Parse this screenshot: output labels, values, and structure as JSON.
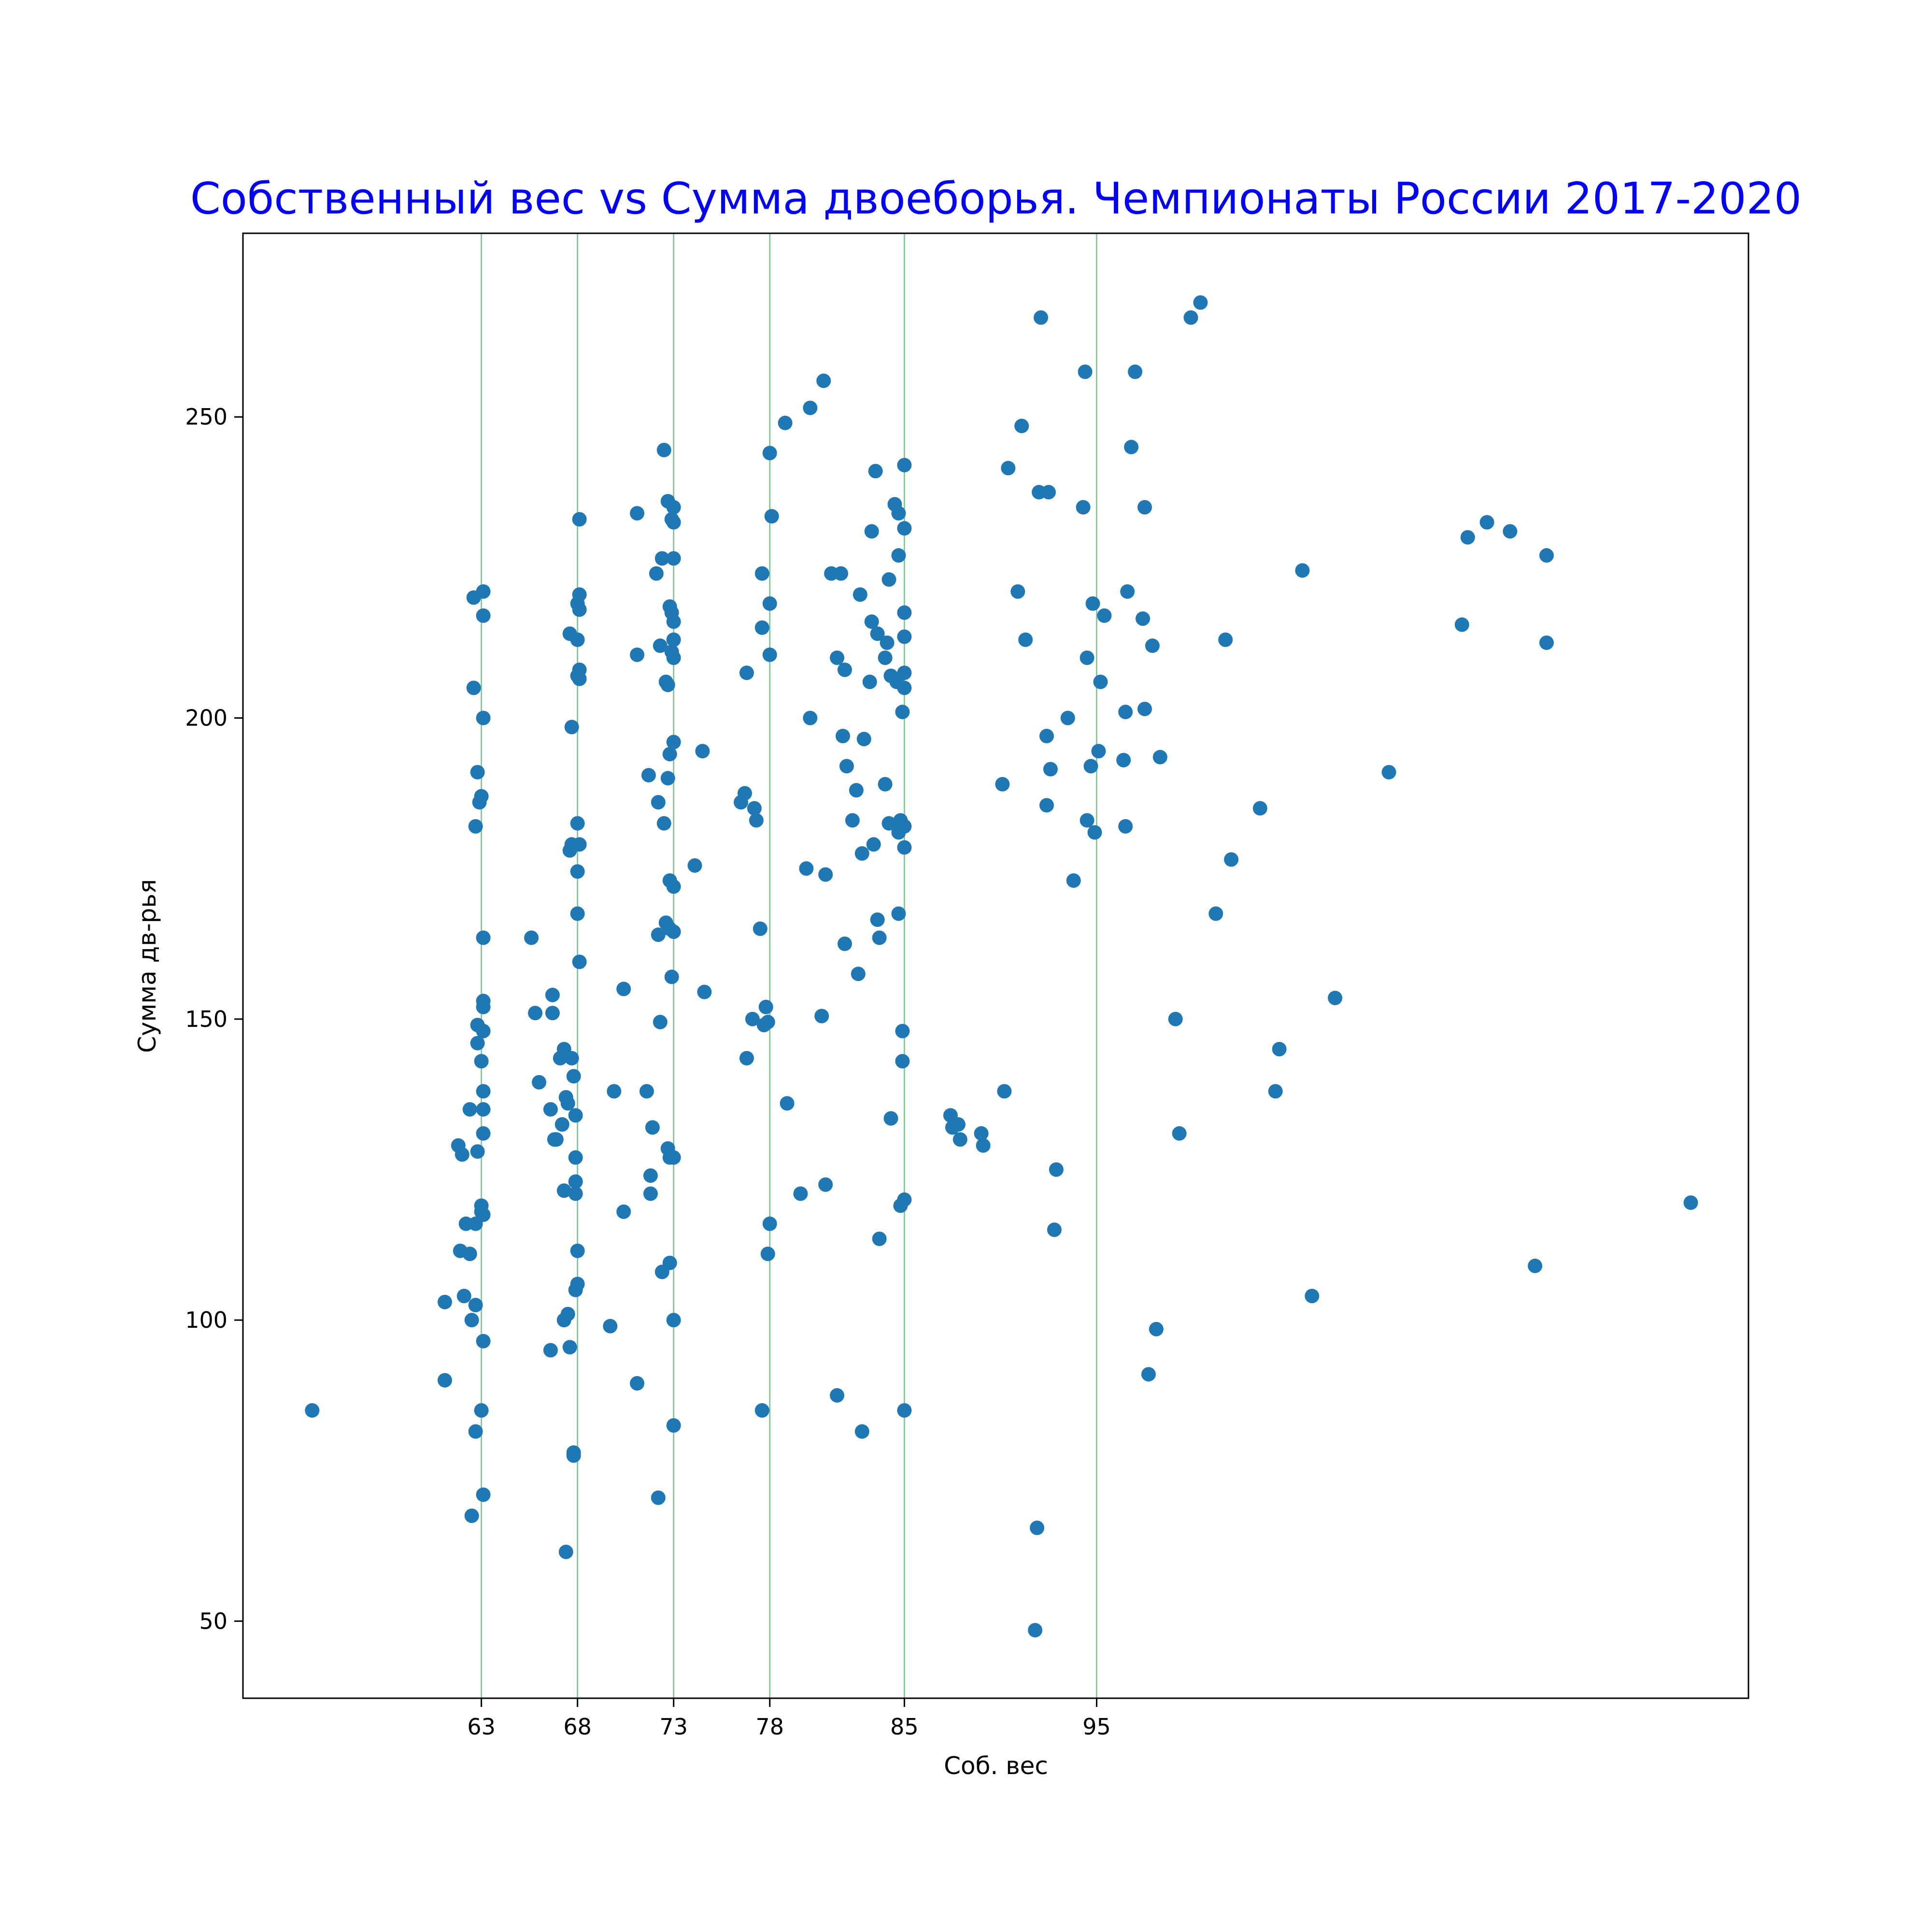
{
  "chart_data": {
    "type": "scatter",
    "title": "Собственный вес vs Сумма двоеборья. Чемпионаты России 2017-2020",
    "xlabel": "Соб. вес",
    "ylabel": "Сумма дв-рья",
    "xlim": [
      50.6,
      128.9
    ],
    "ylim": [
      37.2,
      280.5
    ],
    "xticks": [
      63,
      68,
      73,
      78,
      85,
      95
    ],
    "yticks": [
      50,
      100,
      150,
      200,
      250
    ],
    "vlines": [
      63,
      68,
      73,
      78,
      85,
      95
    ],
    "grid": false,
    "series": [
      {
        "points": [
          [
            54.2,
            85
          ],
          [
            61.1,
            103
          ],
          [
            61.1,
            90
          ],
          [
            61.8,
            129
          ],
          [
            61.9,
            111.5
          ],
          [
            62.0,
            127.5
          ],
          [
            62.1,
            104
          ],
          [
            62.2,
            116
          ],
          [
            62.4,
            111
          ],
          [
            62.4,
            135
          ],
          [
            62.5,
            100
          ],
          [
            62.5,
            67.5
          ],
          [
            62.6,
            220
          ],
          [
            62.6,
            205
          ],
          [
            62.7,
            182
          ],
          [
            62.7,
            116
          ],
          [
            62.7,
            102.5
          ],
          [
            62.7,
            81.5
          ],
          [
            62.8,
            191
          ],
          [
            62.8,
            149
          ],
          [
            62.8,
            146
          ],
          [
            62.8,
            128
          ],
          [
            62.9,
            186
          ],
          [
            63.0,
            187
          ],
          [
            63.0,
            143
          ],
          [
            63.0,
            119
          ],
          [
            63.0,
            118
          ],
          [
            63.0,
            85
          ],
          [
            63.1,
            221
          ],
          [
            63.1,
            217
          ],
          [
            63.1,
            200
          ],
          [
            63.1,
            163.5
          ],
          [
            63.1,
            153
          ],
          [
            63.1,
            152
          ],
          [
            63.1,
            148
          ],
          [
            63.1,
            138
          ],
          [
            63.1,
            135
          ],
          [
            63.1,
            131
          ],
          [
            63.1,
            117.5
          ],
          [
            63.1,
            96.5
          ],
          [
            63.1,
            71
          ],
          [
            65.6,
            163.5
          ],
          [
            65.8,
            151
          ],
          [
            66.0,
            139.5
          ],
          [
            66.6,
            135
          ],
          [
            66.6,
            95
          ],
          [
            66.7,
            154
          ],
          [
            66.7,
            151
          ],
          [
            66.8,
            130
          ],
          [
            66.9,
            130
          ],
          [
            67.1,
            143.5
          ],
          [
            67.2,
            132.5
          ],
          [
            67.3,
            145
          ],
          [
            67.3,
            121.5
          ],
          [
            67.3,
            100
          ],
          [
            67.4,
            137
          ],
          [
            67.4,
            61.5
          ],
          [
            67.5,
            136
          ],
          [
            67.5,
            101
          ],
          [
            67.6,
            214
          ],
          [
            67.6,
            178
          ],
          [
            67.6,
            95.5
          ],
          [
            67.7,
            198.5
          ],
          [
            67.7,
            179
          ],
          [
            67.7,
            143.5
          ],
          [
            67.8,
            140.5
          ],
          [
            67.8,
            78
          ],
          [
            67.8,
            77.5
          ],
          [
            67.9,
            134
          ],
          [
            67.9,
            127
          ],
          [
            67.9,
            123
          ],
          [
            67.9,
            121
          ],
          [
            67.9,
            105
          ],
          [
            68.0,
            219
          ],
          [
            68.0,
            213
          ],
          [
            68.0,
            207
          ],
          [
            68.0,
            182.5
          ],
          [
            68.0,
            174.5
          ],
          [
            68.0,
            167.5
          ],
          [
            68.0,
            111.5
          ],
          [
            68.0,
            106
          ],
          [
            68.1,
            233
          ],
          [
            68.1,
            220.5
          ],
          [
            68.1,
            218
          ],
          [
            68.1,
            208
          ],
          [
            68.1,
            206.5
          ],
          [
            68.1,
            179
          ],
          [
            68.1,
            159.5
          ],
          [
            69.7,
            99
          ],
          [
            69.9,
            138
          ],
          [
            70.4,
            155
          ],
          [
            70.4,
            118
          ],
          [
            71.1,
            234
          ],
          [
            71.1,
            210.5
          ],
          [
            71.1,
            89.5
          ],
          [
            71.6,
            138
          ],
          [
            71.7,
            190.5
          ],
          [
            71.8,
            124
          ],
          [
            71.8,
            121
          ],
          [
            71.9,
            132
          ],
          [
            72.1,
            224
          ],
          [
            72.2,
            186
          ],
          [
            72.2,
            164
          ],
          [
            72.2,
            70.5
          ],
          [
            72.3,
            212
          ],
          [
            72.3,
            149.5
          ],
          [
            72.4,
            226.5
          ],
          [
            72.4,
            108
          ],
          [
            72.5,
            244.5
          ],
          [
            72.5,
            182.5
          ],
          [
            72.6,
            206
          ],
          [
            72.6,
            166
          ],
          [
            72.7,
            236
          ],
          [
            72.7,
            205.5
          ],
          [
            72.7,
            190
          ],
          [
            72.7,
            128.5
          ],
          [
            72.8,
            218.5
          ],
          [
            72.8,
            194
          ],
          [
            72.8,
            173
          ],
          [
            72.8,
            165
          ],
          [
            72.8,
            109.5
          ],
          [
            72.8,
            127
          ],
          [
            72.9,
            233
          ],
          [
            72.9,
            217.5
          ],
          [
            72.9,
            211
          ],
          [
            72.9,
            157
          ],
          [
            73.0,
            235
          ],
          [
            73.0,
            232.5
          ],
          [
            73.0,
            216
          ],
          [
            73.0,
            213
          ],
          [
            73.0,
            210
          ],
          [
            73.0,
            196
          ],
          [
            73.0,
            172
          ],
          [
            73.0,
            164.5
          ],
          [
            73.0,
            100
          ],
          [
            73.0,
            82.5
          ],
          [
            73.0,
            127
          ],
          [
            73.0,
            226.5
          ],
          [
            74.1,
            175.5
          ],
          [
            74.5,
            194.5
          ],
          [
            74.6,
            154.5
          ],
          [
            76.5,
            186
          ],
          [
            76.7,
            187.5
          ],
          [
            76.8,
            207.5
          ],
          [
            76.8,
            143.5
          ],
          [
            77.1,
            150
          ],
          [
            77.2,
            185
          ],
          [
            77.3,
            183
          ],
          [
            77.5,
            165
          ],
          [
            77.6,
            224
          ],
          [
            77.6,
            215
          ],
          [
            77.6,
            85
          ],
          [
            77.7,
            149
          ],
          [
            77.8,
            152
          ],
          [
            77.9,
            149.5
          ],
          [
            77.9,
            111
          ],
          [
            78.0,
            219
          ],
          [
            78.0,
            244
          ],
          [
            78.0,
            210.5
          ],
          [
            78.0,
            116
          ],
          [
            78.1,
            233.5
          ],
          [
            78.8,
            249
          ],
          [
            78.9,
            136
          ],
          [
            79.6,
            121
          ],
          [
            79.9,
            175
          ],
          [
            80.1,
            251.5
          ],
          [
            80.1,
            200
          ],
          [
            80.7,
            150.5
          ],
          [
            80.8,
            256
          ],
          [
            80.9,
            174
          ],
          [
            80.9,
            122.5
          ],
          [
            81.2,
            224
          ],
          [
            81.5,
            210
          ],
          [
            81.5,
            87.5
          ],
          [
            81.7,
            224
          ],
          [
            81.8,
            197
          ],
          [
            81.9,
            162.5
          ],
          [
            81.9,
            208
          ],
          [
            82.0,
            192
          ],
          [
            82.3,
            183
          ],
          [
            82.5,
            188
          ],
          [
            82.6,
            157.5
          ],
          [
            82.7,
            220.5
          ],
          [
            82.8,
            177.5
          ],
          [
            82.8,
            81.5
          ],
          [
            82.9,
            196.5
          ],
          [
            83.2,
            206
          ],
          [
            83.3,
            216
          ],
          [
            83.3,
            231
          ],
          [
            83.4,
            179
          ],
          [
            83.5,
            241
          ],
          [
            83.6,
            214
          ],
          [
            83.6,
            166.5
          ],
          [
            83.7,
            163.5
          ],
          [
            83.7,
            113.5
          ],
          [
            84.0,
            210
          ],
          [
            84.0,
            189
          ],
          [
            84.1,
            212.5
          ],
          [
            84.2,
            223
          ],
          [
            84.2,
            182.5
          ],
          [
            84.3,
            207
          ],
          [
            84.3,
            133.5
          ],
          [
            84.5,
            235.5
          ],
          [
            84.6,
            206
          ],
          [
            84.7,
            234
          ],
          [
            84.7,
            227
          ],
          [
            84.7,
            167.5
          ],
          [
            84.7,
            181
          ],
          [
            84.8,
            183
          ],
          [
            84.8,
            119
          ],
          [
            84.9,
            201
          ],
          [
            84.9,
            148
          ],
          [
            84.9,
            143
          ],
          [
            85.0,
            242
          ],
          [
            85.0,
            231.5
          ],
          [
            85.0,
            217.5
          ],
          [
            85.0,
            213.5
          ],
          [
            85.0,
            207.5
          ],
          [
            85.0,
            205
          ],
          [
            85.0,
            178.5
          ],
          [
            85.0,
            182
          ],
          [
            85.0,
            120
          ],
          [
            85.0,
            85
          ],
          [
            87.4,
            134
          ],
          [
            87.5,
            132
          ],
          [
            87.8,
            132.5
          ],
          [
            87.9,
            130
          ],
          [
            89.0,
            131
          ],
          [
            89.1,
            129
          ],
          [
            90.1,
            189
          ],
          [
            90.2,
            138
          ],
          [
            90.4,
            241.5
          ],
          [
            90.9,
            221
          ],
          [
            91.1,
            248.5
          ],
          [
            91.3,
            213
          ],
          [
            91.9,
            65.5
          ],
          [
            91.8,
            48.5
          ],
          [
            92.0,
            237.5
          ],
          [
            92.1,
            266.5
          ],
          [
            92.4,
            197
          ],
          [
            92.4,
            185.5
          ],
          [
            92.5,
            237.5
          ],
          [
            92.6,
            191.5
          ],
          [
            92.8,
            115
          ],
          [
            92.9,
            125
          ],
          [
            93.5,
            200
          ],
          [
            93.8,
            173
          ],
          [
            94.3,
            235
          ],
          [
            94.4,
            257.5
          ],
          [
            94.5,
            210
          ],
          [
            94.5,
            183
          ],
          [
            94.7,
            192
          ],
          [
            94.8,
            219
          ],
          [
            94.9,
            181
          ],
          [
            95.1,
            194.5
          ],
          [
            95.2,
            206
          ],
          [
            95.4,
            217
          ],
          [
            96.4,
            193
          ],
          [
            96.5,
            201
          ],
          [
            96.5,
            182
          ],
          [
            96.6,
            221
          ],
          [
            96.8,
            245
          ],
          [
            97.0,
            257.5
          ],
          [
            97.4,
            216.5
          ],
          [
            97.5,
            235
          ],
          [
            97.5,
            201.5
          ],
          [
            97.7,
            91
          ],
          [
            97.9,
            212
          ],
          [
            98.1,
            98.5
          ],
          [
            98.3,
            193.5
          ],
          [
            99.1,
            150
          ],
          [
            99.3,
            131
          ],
          [
            99.9,
            266.5
          ],
          [
            100.4,
            269
          ],
          [
            101.2,
            167.5
          ],
          [
            101.7,
            213
          ],
          [
            102.0,
            176.5
          ],
          [
            103.5,
            185
          ],
          [
            104.3,
            138
          ],
          [
            104.5,
            145
          ],
          [
            105.7,
            224.5
          ],
          [
            106.2,
            104
          ],
          [
            107.4,
            153.5
          ],
          [
            110.2,
            191
          ],
          [
            114.0,
            215.5
          ],
          [
            114.3,
            230
          ],
          [
            115.3,
            232.5
          ],
          [
            116.5,
            231
          ],
          [
            117.8,
            109
          ],
          [
            118.4,
            227
          ],
          [
            118.4,
            212.5
          ],
          [
            125.9,
            119.5
          ]
        ]
      }
    ]
  },
  "colors": {
    "title": "#0000ff",
    "marker": "#1f77b4",
    "vline": "#73c48a",
    "axes": "#000000",
    "background": "#ffffff"
  }
}
